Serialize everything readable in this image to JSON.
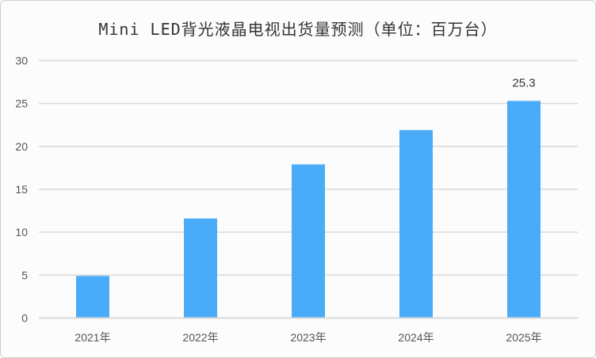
{
  "chart_data": {
    "type": "bar",
    "title": "Mini LED背光液晶电视出货量预测（单位：百万台）",
    "categories": [
      "2021年",
      "2022年",
      "2023年",
      "2024年",
      "2025年"
    ],
    "values": [
      4.9,
      11.6,
      17.9,
      21.9,
      25.3
    ],
    "data_labels": [
      null,
      null,
      null,
      null,
      "25.3"
    ],
    "yticks": [
      "0",
      "5",
      "10",
      "15",
      "20",
      "25",
      "30"
    ],
    "ylim": [
      0,
      30
    ],
    "xlabel": "",
    "ylabel": "",
    "grid": true,
    "bar_color": "#4aacf8",
    "grid_color": "#d9d9d9"
  }
}
